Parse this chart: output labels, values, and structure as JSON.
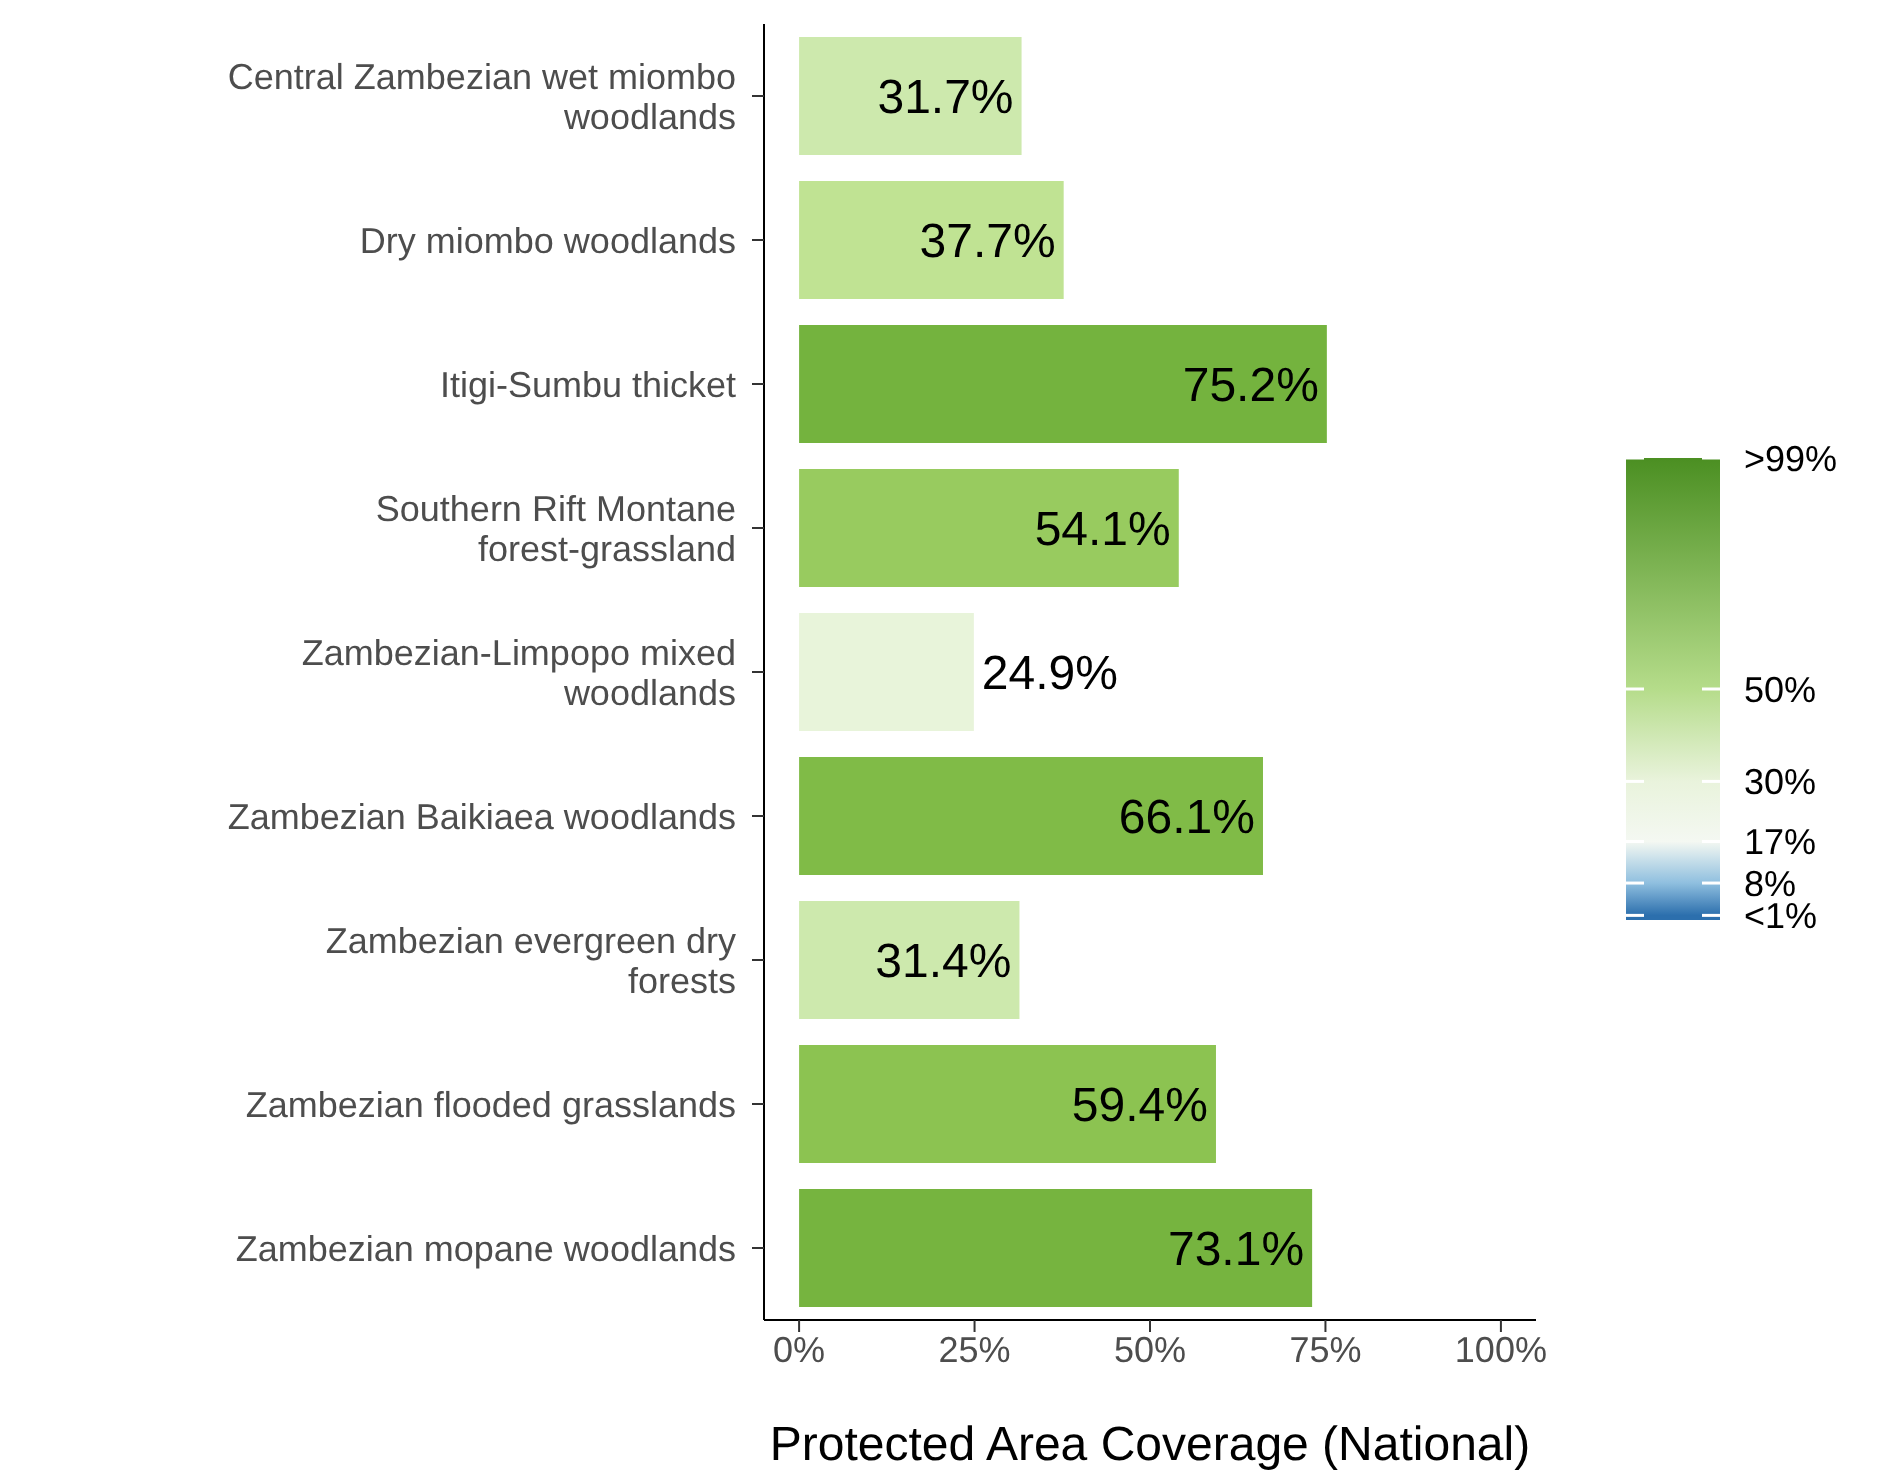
{
  "chart_data": {
    "type": "bar",
    "orientation": "horizontal",
    "xlabel": "Protected Area Coverage (National)",
    "categories": [
      "Central Zambezian wet miombo woodlands",
      "Dry miombo woodlands",
      "Itigi-Sumbu thicket",
      "Southern Rift Montane forest-grassland",
      "Zambezian-Limpopo mixed woodlands",
      "Zambezian Baikiaea woodlands",
      "Zambezian evergreen dry forests",
      "Zambezian flooded grasslands",
      "Zambezian mopane woodlands"
    ],
    "values": [
      31.7,
      37.7,
      75.2,
      54.1,
      24.9,
      66.1,
      31.4,
      59.4,
      73.1
    ],
    "colors": [
      "#cde9ad",
      "#c0e393",
      "#74b33e",
      "#98cb5f",
      "#e8f4da",
      "#80bb47",
      "#cde9ad",
      "#8cc351",
      "#76b43f"
    ],
    "value_labels": [
      "31.7%",
      "37.7%",
      "75.2%",
      "54.1%",
      "24.9%",
      "66.1%",
      "31.4%",
      "59.4%",
      "73.1%"
    ],
    "xlim": [
      -5,
      105
    ],
    "xticks": [
      {
        "value": 0,
        "label": "0%"
      },
      {
        "value": 25,
        "label": "25%"
      },
      {
        "value": 50,
        "label": "50%"
      },
      {
        "value": 75,
        "label": "75%"
      },
      {
        "value": 100,
        "label": "100%"
      }
    ],
    "clim": [
      0,
      100
    ],
    "cticks": [
      {
        "value": 1,
        "label": "<1%"
      },
      {
        "value": 8,
        "label": "8%"
      },
      {
        "value": 17,
        "label": "17%"
      },
      {
        "value": 30,
        "label": "30%"
      },
      {
        "value": 50,
        "label": "50%"
      },
      {
        "value": 100,
        "label": ">99%"
      }
    ],
    "grid": false
  }
}
